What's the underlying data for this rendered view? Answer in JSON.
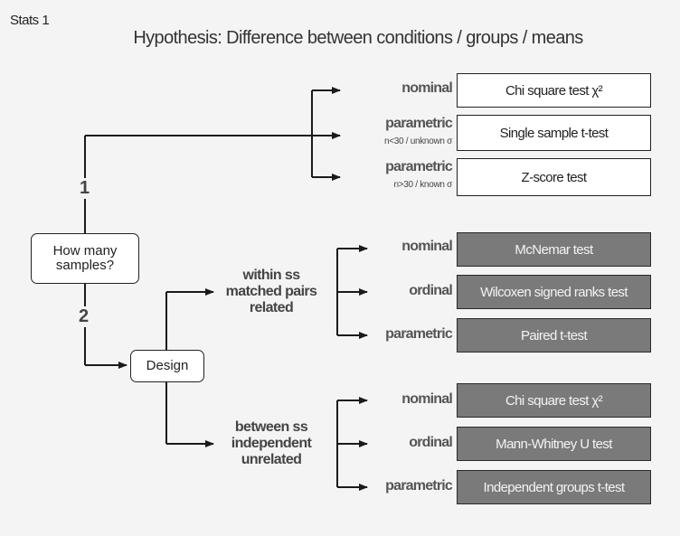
{
  "corner_label": "Stats 1",
  "title": "Hypothesis: Difference between conditions / groups / means",
  "start_node": "How many samples?",
  "design_node": "Design",
  "branches": {
    "one": "1",
    "two": "2"
  },
  "one_sample": {
    "nominal": {
      "level": "nominal",
      "test": "Chi square test  χ²"
    },
    "parametric_small": {
      "level": "parametric",
      "condition": "n<30 / unknown σ",
      "test": "Single sample t-test"
    },
    "parametric_large": {
      "level": "parametric",
      "condition": "n>30 / known σ",
      "test": "Z-score test"
    }
  },
  "within": {
    "label": [
      "within ss",
      "matched pairs",
      "related"
    ],
    "nominal": {
      "level": "nominal",
      "test": "McNemar test"
    },
    "ordinal": {
      "level": "ordinal",
      "test": "Wilcoxen signed ranks test"
    },
    "parametric": {
      "level": "parametric",
      "test": "Paired t-test"
    }
  },
  "between": {
    "label": [
      "between ss",
      "independent",
      "unrelated"
    ],
    "nominal": {
      "level": "nominal",
      "test": "Chi square test  χ²"
    },
    "ordinal": {
      "level": "ordinal",
      "test": "Mann-Whitney U test"
    },
    "parametric": {
      "level": "parametric",
      "test": "Independent groups t-test"
    }
  },
  "colors": {
    "white_box": "#ffffff",
    "gray_box": "#7a7a7a",
    "line": "#1a1a1a"
  }
}
